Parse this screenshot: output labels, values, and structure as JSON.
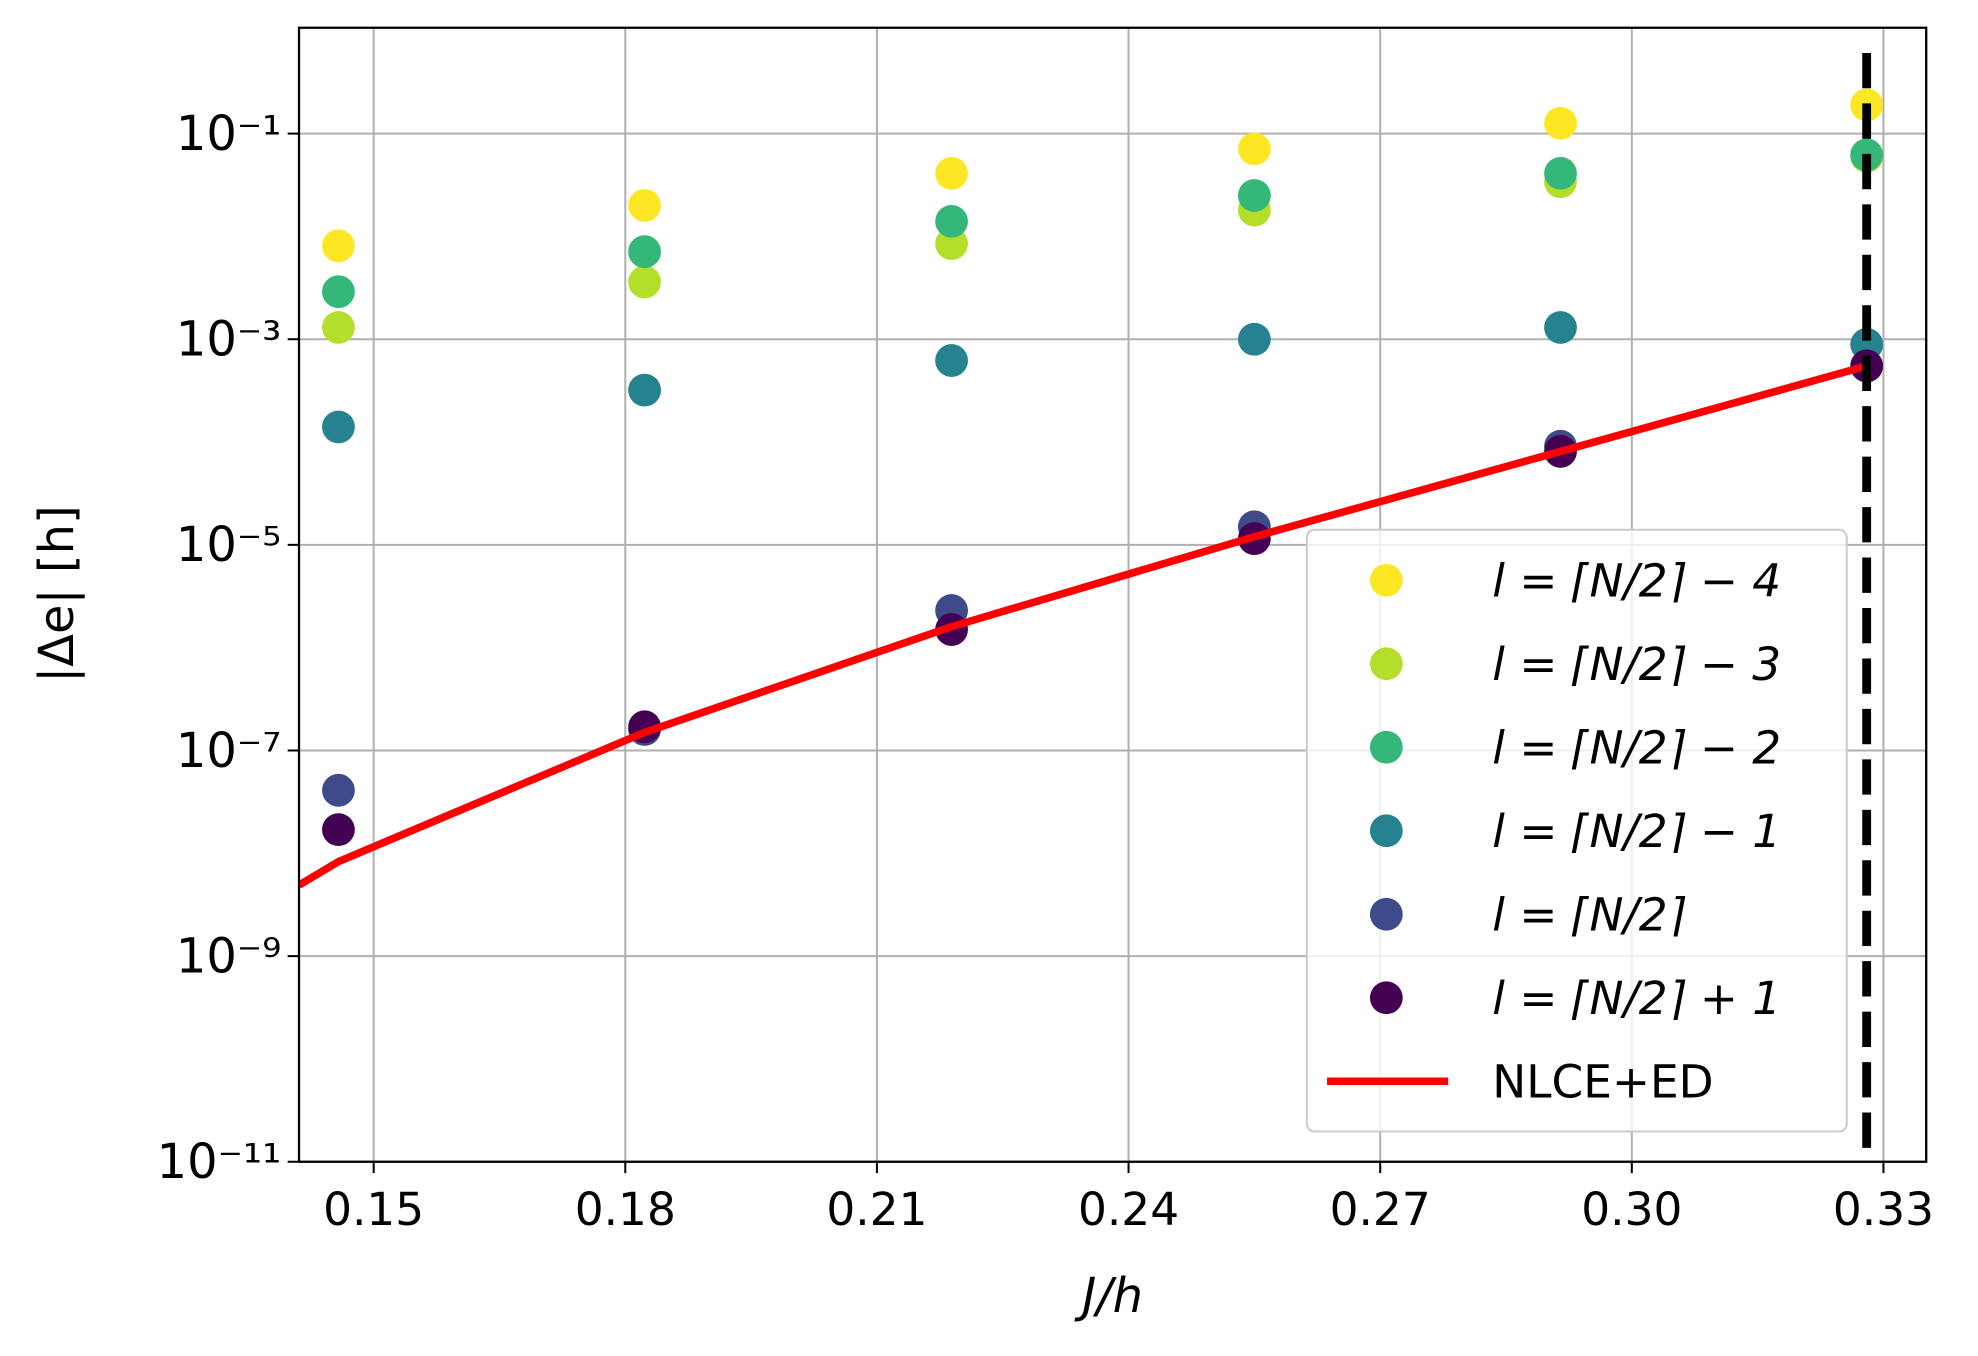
{
  "chart_data": {
    "type": "scatter",
    "x_label": "J/h",
    "y_label": "|Δe| [h]",
    "log_y": true,
    "grid": true,
    "legend_position": "lower right",
    "xlim": [
      0.1411,
      0.3351
    ],
    "ylim": [
      1e-11,
      1.07
    ],
    "xticks": [
      0.15,
      0.18,
      0.21,
      0.24,
      0.27,
      {
        "value": 0.3,
        "label": "0.30"
      },
      0.33
    ],
    "yticks": [
      {
        "value": 1e-11,
        "label": "10⁻¹¹"
      },
      {
        "value": 1e-09,
        "label": "10⁻⁹"
      },
      {
        "value": 1e-07,
        "label": "10⁻⁷"
      },
      {
        "value": 1e-05,
        "label": "10⁻⁵"
      },
      {
        "value": 0.001,
        "label": "10⁻³"
      },
      {
        "value": 0.1,
        "label": "10⁻¹"
      }
    ],
    "x": [
      0.1458,
      0.1823,
      0.2189,
      0.255,
      0.2915,
      0.328
    ],
    "series": [
      {
        "name": "l = ⌈N/2⌉ − 4",
        "color": "#fde725",
        "values": [
          0.0081,
          0.02,
          0.041,
          0.071,
          0.126,
          0.19
        ]
      },
      {
        "name": "l = ⌈N/2⌉ − 3",
        "color": "#b5de2b",
        "values": [
          0.0013,
          0.0036,
          0.0085,
          0.018,
          0.034,
          0.06
        ]
      },
      {
        "name": "l = ⌈N/2⌉ − 2",
        "color": "#35b779",
        "values": [
          0.0029,
          0.0071,
          0.014,
          0.025,
          0.041,
          0.062
        ]
      },
      {
        "name": "l = ⌈N/2⌉ − 1",
        "color": "#26828e",
        "values": [
          0.00014,
          0.00032,
          0.00062,
          0.001,
          0.0013,
          0.00089
        ]
      },
      {
        "name": "l = ⌈N/2⌉",
        "color": "#3e4a89",
        "values": [
          4.1e-08,
          1.6e-07,
          2.3e-06,
          1.5e-05,
          9.1e-05,
          0.00055
        ]
      },
      {
        "name": "l = ⌈N/2⌉ + 1",
        "color": "#440154",
        "values": [
          1.7e-08,
          1.7e-07,
          1.5e-06,
          1.15e-05,
          8.1e-05,
          0.00055
        ]
      }
    ],
    "line": {
      "name": "NLCE+ED",
      "color": "#ff0000",
      "x": [
        0.1411,
        0.1458,
        0.1823,
        0.2189,
        0.255,
        0.2915,
        0.328
      ],
      "values": [
        4.9e-09,
        8.3e-09,
        1.5e-07,
        1.6e-06,
        1.2e-05,
        8.1e-05,
        0.00055
      ]
    },
    "vline": {
      "x": 0.328,
      "color": "#000000"
    }
  }
}
